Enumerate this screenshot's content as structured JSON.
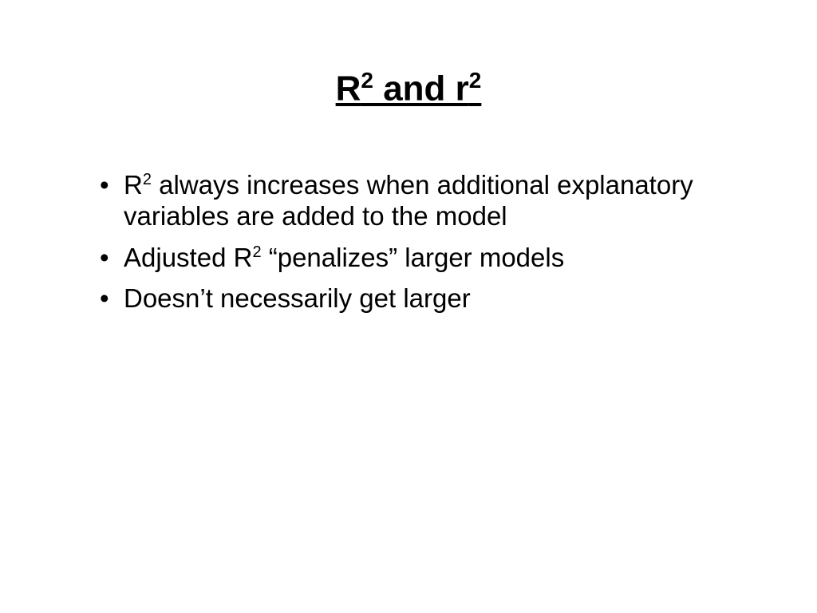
{
  "slide": {
    "title_parts": {
      "r_upper": "R",
      "sup1": "2",
      "mid": " and r",
      "sup2": "2"
    },
    "bullets": [
      {
        "prefix": "R",
        "sup": "2",
        "rest": " always increases when additional explanatory variables are added to the model"
      },
      {
        "prefix": "Adjusted R",
        "sup": "2",
        "rest": " “penalizes” larger models"
      },
      {
        "prefix": "Doesn’t necessarily get larger",
        "sup": "",
        "rest": ""
      }
    ],
    "colors": {
      "background": "#ffffff",
      "text": "#000000"
    },
    "typography": {
      "title_fontsize": 44,
      "title_sup_fontsize": 28,
      "body_fontsize": 33,
      "body_sup_fontsize": 20,
      "font_family": "Arial"
    }
  }
}
